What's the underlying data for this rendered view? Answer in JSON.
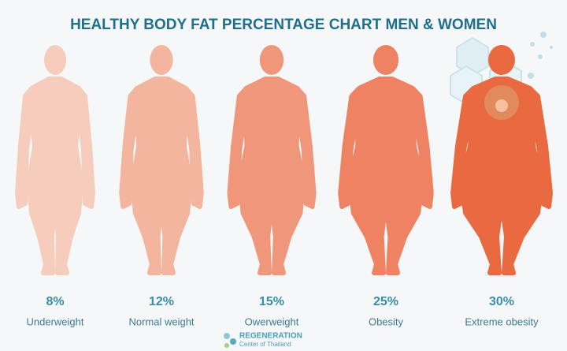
{
  "title": "HEALTHY BODY FAT PERCENTAGE CHART MEN & WOMEN",
  "figures": [
    {
      "percent": "8%",
      "label": "Underweight"
    },
    {
      "percent": "12%",
      "label": "Normal weight"
    },
    {
      "percent": "15%",
      "label": "Owerweight"
    },
    {
      "percent": "25%",
      "label": "Obesity"
    },
    {
      "percent": "30%",
      "label": "Extreme obesity"
    }
  ],
  "logo": {
    "name": "REGENERATION",
    "subtitle": "Center of Thailand"
  }
}
